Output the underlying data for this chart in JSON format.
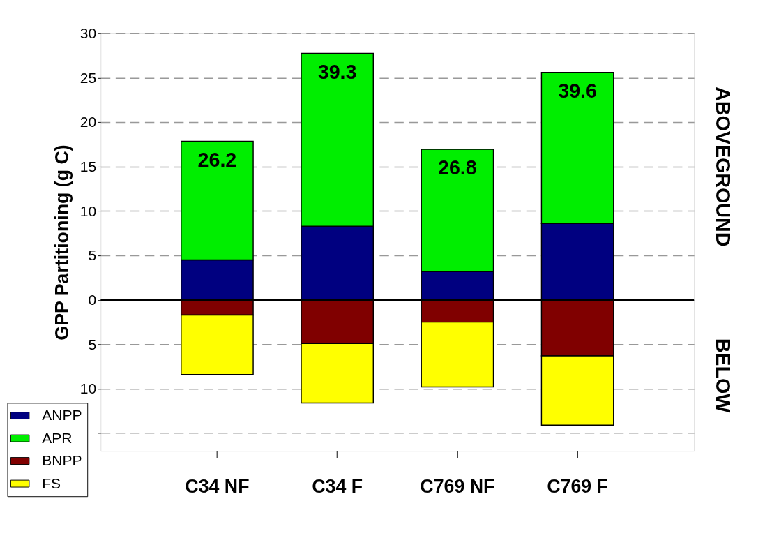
{
  "chart_data": {
    "type": "bar",
    "stacked": true,
    "ylabel": "GPP Partitioning (g C)",
    "categories": [
      "C34 NF",
      "C34 F",
      "C769 NF",
      "C769 F"
    ],
    "series": [
      {
        "name": "ANPP",
        "color": "#000080",
        "values": [
          4.5,
          8.3,
          3.2,
          8.6
        ]
      },
      {
        "name": "APR",
        "color": "#00ee00",
        "values": [
          13.35,
          19.45,
          13.75,
          17.0
        ]
      },
      {
        "name": "BNPP",
        "color": "#800000",
        "values": [
          -1.7,
          -4.9,
          -2.5,
          -6.3
        ]
      },
      {
        "name": "FS",
        "color": "#ffff00",
        "values": [
          -6.7,
          -6.7,
          -7.3,
          -7.8
        ]
      }
    ],
    "ylim": [
      -17,
      30
    ],
    "yticks": [
      {
        "value": -15,
        "label": null
      },
      {
        "value": -10,
        "label": "10"
      },
      {
        "value": -5,
        "label": "5"
      },
      0,
      5,
      10,
      15,
      20,
      25,
      30
    ],
    "grid": "y",
    "ref_lines": [
      {
        "axis": "y",
        "value": 0
      }
    ],
    "legend": "bottom left",
    "annotations": [
      "26.2",
      "39.3",
      "26.8",
      "39.6",
      "ABOVEGROUND",
      "BELOW"
    ]
  }
}
